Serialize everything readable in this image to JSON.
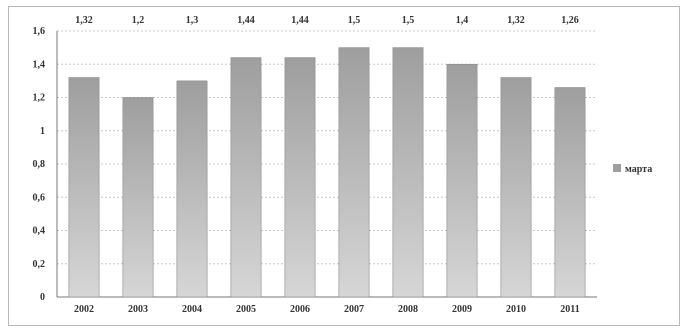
{
  "chart_data": {
    "type": "bar",
    "categories": [
      "2002",
      "2003",
      "2004",
      "2005",
      "2006",
      "2007",
      "2008",
      "2009",
      "2010",
      "2011"
    ],
    "series": [
      {
        "name": "марта",
        "values": [
          1.32,
          1.2,
          1.3,
          1.44,
          1.44,
          1.5,
          1.5,
          1.4,
          1.32,
          1.26
        ]
      }
    ],
    "data_labels": [
      "1,32",
      "1,2",
      "1,3",
      "1,44",
      "1,44",
      "1,5",
      "1,5",
      "1,4",
      "1,32",
      "1,26"
    ],
    "y_ticks": [
      "0",
      "0,2",
      "0,4",
      "0,6",
      "0,8",
      "1",
      "1,2",
      "1,4",
      "1,6"
    ],
    "ylim": [
      0,
      1.6
    ],
    "grid": true,
    "legend_position": "right",
    "colors": {
      "bar": "#9e9e9e",
      "bar_light": "#d6d6d6",
      "grid": "#c8c8c8",
      "axis": "#777777"
    }
  }
}
